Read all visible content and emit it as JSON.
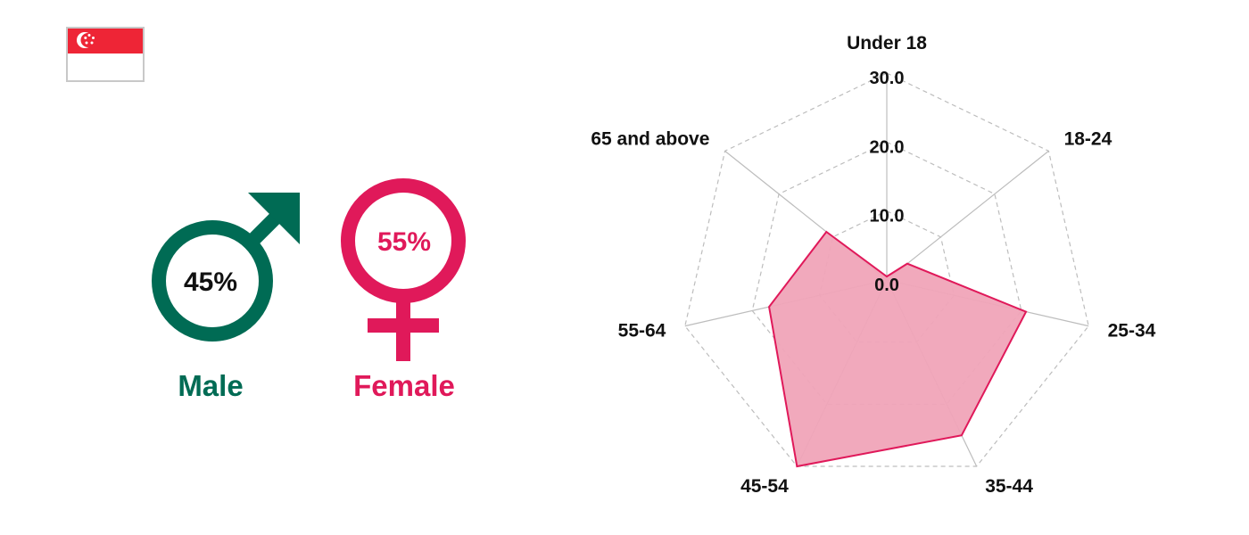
{
  "flag": {
    "top_color": "#ee2536",
    "bottom_color": "#ffffff",
    "border_color": "#c8c8c8"
  },
  "gender": {
    "male": {
      "label": "Male",
      "percent": "45%",
      "color": "#006b54",
      "text_color": "#111111"
    },
    "female": {
      "label": "Female",
      "percent": "55%",
      "color": "#e0195a"
    }
  },
  "chart_data": {
    "type": "radar",
    "categories": [
      "Under 18",
      "18-24",
      "25-34",
      "35-44",
      "45-54",
      "55-64",
      "65 and above"
    ],
    "values": [
      0.5,
      3.8,
      20.7,
      25.0,
      30.0,
      17.5,
      11.2
    ],
    "rmin": 0,
    "rmax": 30,
    "ticks": [
      "0.0",
      "10.0",
      "20.0",
      "30.0"
    ],
    "fill_color": "#f0a4b8",
    "line_color": "#e0195a",
    "grid": true
  }
}
